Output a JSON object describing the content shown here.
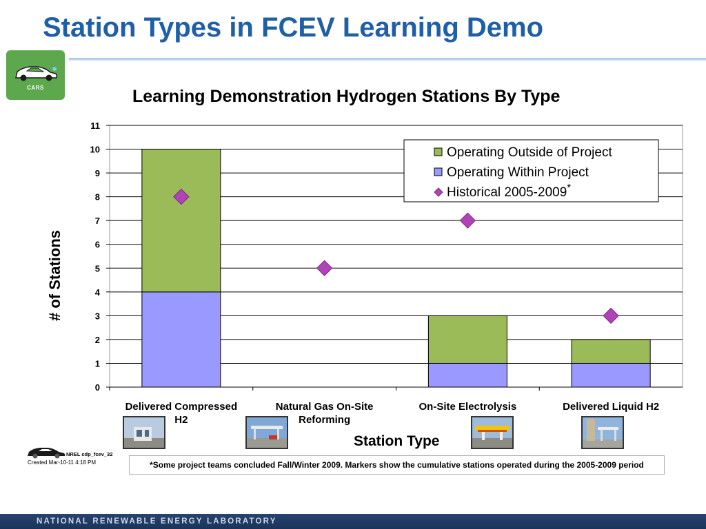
{
  "slide": {
    "title": "Station Types in FCEV Learning Demo"
  },
  "badge": {
    "label": "CARS",
    "icon": "car-icon"
  },
  "chart_data": {
    "type": "bar",
    "stacked": true,
    "title": "Learning Demonstration Hydrogen Stations By Type",
    "xlabel": "Station Type",
    "ylabel": "# of Stations",
    "ylim": [
      0,
      11
    ],
    "yticks": [
      0,
      1,
      2,
      3,
      4,
      5,
      6,
      7,
      8,
      9,
      10,
      11
    ],
    "grid": true,
    "legend_position": "top-right",
    "categories": [
      [
        "Delivered Compressed",
        "H2"
      ],
      [
        "Natural Gas On-Site",
        "Reforming"
      ],
      [
        "On-Site Electrolysis"
      ],
      [
        "Delivered Liquid H2"
      ]
    ],
    "series": [
      {
        "name": "Operating Outside of Project",
        "kind": "bar",
        "color": "#9bbb59",
        "values": [
          6,
          0,
          2,
          1
        ]
      },
      {
        "name": "Operating Within Project",
        "kind": "bar",
        "color": "#9999ff",
        "values": [
          4,
          0,
          1,
          1
        ]
      },
      {
        "name": "Historical 2005-2009",
        "superscript": "*",
        "kind": "marker",
        "color": "#b043b8",
        "values": [
          8,
          5,
          7,
          3
        ]
      }
    ]
  },
  "footnote": "*Some project teams concluded Fall/Winter 2009.  Markers show the cumulative stations operated during the 2005-2009 period",
  "credits": {
    "id": "NREL cdp_fcev_32",
    "created": "Created Mar-10-11 4:18 PM"
  },
  "footer": {
    "text": "NATIONAL RENEWABLE ENERGY LABORATORY"
  },
  "photos": [
    "station-photo-compressed",
    "station-photo-reforming",
    "station-photo-electrolysis",
    "station-photo-liquid"
  ]
}
